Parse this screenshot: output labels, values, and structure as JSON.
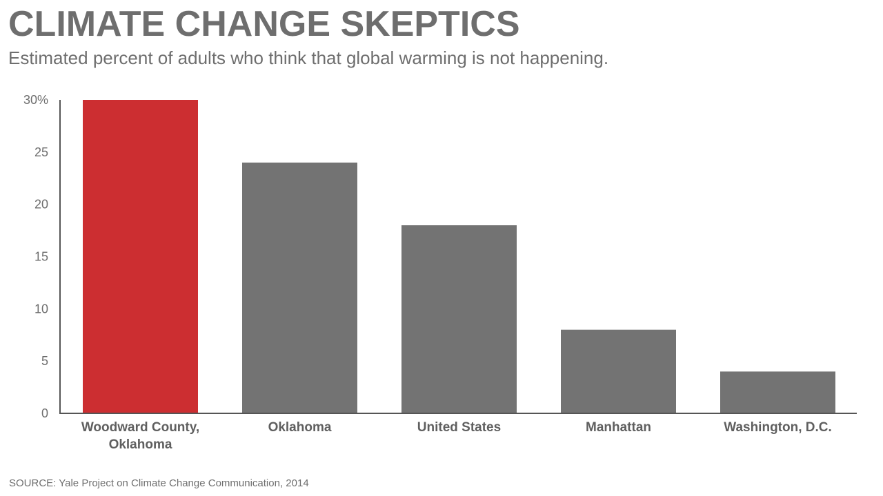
{
  "header": {
    "title": "CLIMATE CHANGE SKEPTICS",
    "subtitle": "Estimated percent of adults who think that global warming is not happening."
  },
  "footer": {
    "source": "SOURCE: Yale Project on Climate Change Communication, 2014"
  },
  "colors": {
    "highlight": "#cc2e31",
    "bar": "#737373",
    "axis": "#555555",
    "text": "#6e6e6e"
  },
  "chart_data": {
    "type": "bar",
    "title": "CLIMATE CHANGE SKEPTICS",
    "subtitle": "Estimated percent of adults who think that global warming is not happening.",
    "categories": [
      [
        "Woodward County,",
        "Oklahoma"
      ],
      [
        "Oklahoma"
      ],
      [
        "United States"
      ],
      [
        "Manhattan"
      ],
      [
        "Washington, D.C."
      ]
    ],
    "values": [
      30,
      24,
      18,
      8,
      4
    ],
    "highlight_index": 0,
    "ylim": [
      0,
      30
    ],
    "yticks": [
      0,
      5,
      10,
      15,
      20,
      25,
      30
    ],
    "ytick_labels": [
      "0",
      "5",
      "10",
      "15",
      "20",
      "25",
      "30%"
    ],
    "grid": false,
    "xlabel": "",
    "ylabel": ""
  }
}
